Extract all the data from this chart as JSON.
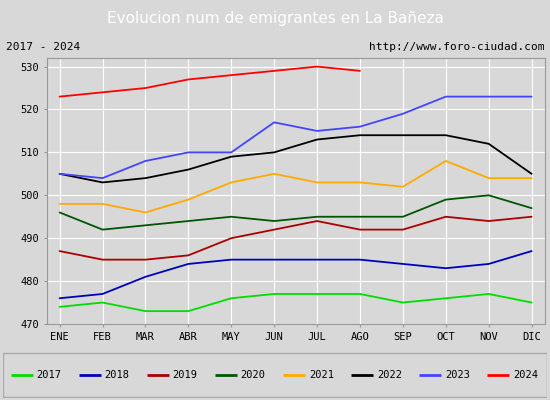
{
  "title": "Evolucion num de emigrantes en La Bañeza",
  "subtitle_left": "2017 - 2024",
  "subtitle_right": "http://www.foro-ciudad.com",
  "months": [
    "ENE",
    "FEB",
    "MAR",
    "ABR",
    "MAY",
    "JUN",
    "JUL",
    "AGO",
    "SEP",
    "OCT",
    "NOV",
    "DIC"
  ],
  "ylim": [
    470,
    532
  ],
  "yticks": [
    470,
    480,
    490,
    500,
    510,
    520,
    530
  ],
  "series": {
    "2017": {
      "color": "#00dd00",
      "values": [
        474,
        475,
        473,
        473,
        476,
        477,
        477,
        477,
        475,
        476,
        477,
        475
      ]
    },
    "2018": {
      "color": "#0000bb",
      "values": [
        476,
        477,
        481,
        484,
        485,
        485,
        485,
        485,
        484,
        483,
        484,
        487
      ]
    },
    "2019": {
      "color": "#aa0000",
      "values": [
        487,
        485,
        485,
        486,
        490,
        492,
        494,
        492,
        492,
        495,
        494,
        495
      ]
    },
    "2020": {
      "color": "#005500",
      "values": [
        496,
        492,
        493,
        494,
        495,
        494,
        495,
        495,
        495,
        499,
        500,
        497
      ]
    },
    "2021": {
      "color": "#ffaa00",
      "values": [
        498,
        498,
        496,
        499,
        503,
        505,
        503,
        503,
        502,
        508,
        504,
        504
      ]
    },
    "2022": {
      "color": "#000000",
      "values": [
        505,
        503,
        504,
        506,
        509,
        510,
        513,
        514,
        514,
        514,
        512,
        505
      ]
    },
    "2023": {
      "color": "#4444ff",
      "values": [
        505,
        504,
        508,
        510,
        510,
        517,
        515,
        516,
        519,
        523,
        523,
        523
      ]
    },
    "2024": {
      "color": "#ff0000",
      "values": [
        523,
        524,
        525,
        527,
        528,
        529,
        530,
        529,
        null,
        null,
        null,
        null
      ]
    }
  },
  "fig_bg": "#d8d8d8",
  "plot_bg": "#d8d8d8",
  "title_bg": "#5599cc",
  "title_color": "white",
  "subtitle_bg": "#cccccc",
  "legend_bg": "white",
  "grid_color": "white",
  "legend_years": [
    "2017",
    "2018",
    "2019",
    "2020",
    "2021",
    "2022",
    "2023",
    "2024"
  ],
  "title_fontsize": 11,
  "tick_fontsize": 7.5,
  "subtitle_fontsize": 8,
  "legend_fontsize": 7.5
}
